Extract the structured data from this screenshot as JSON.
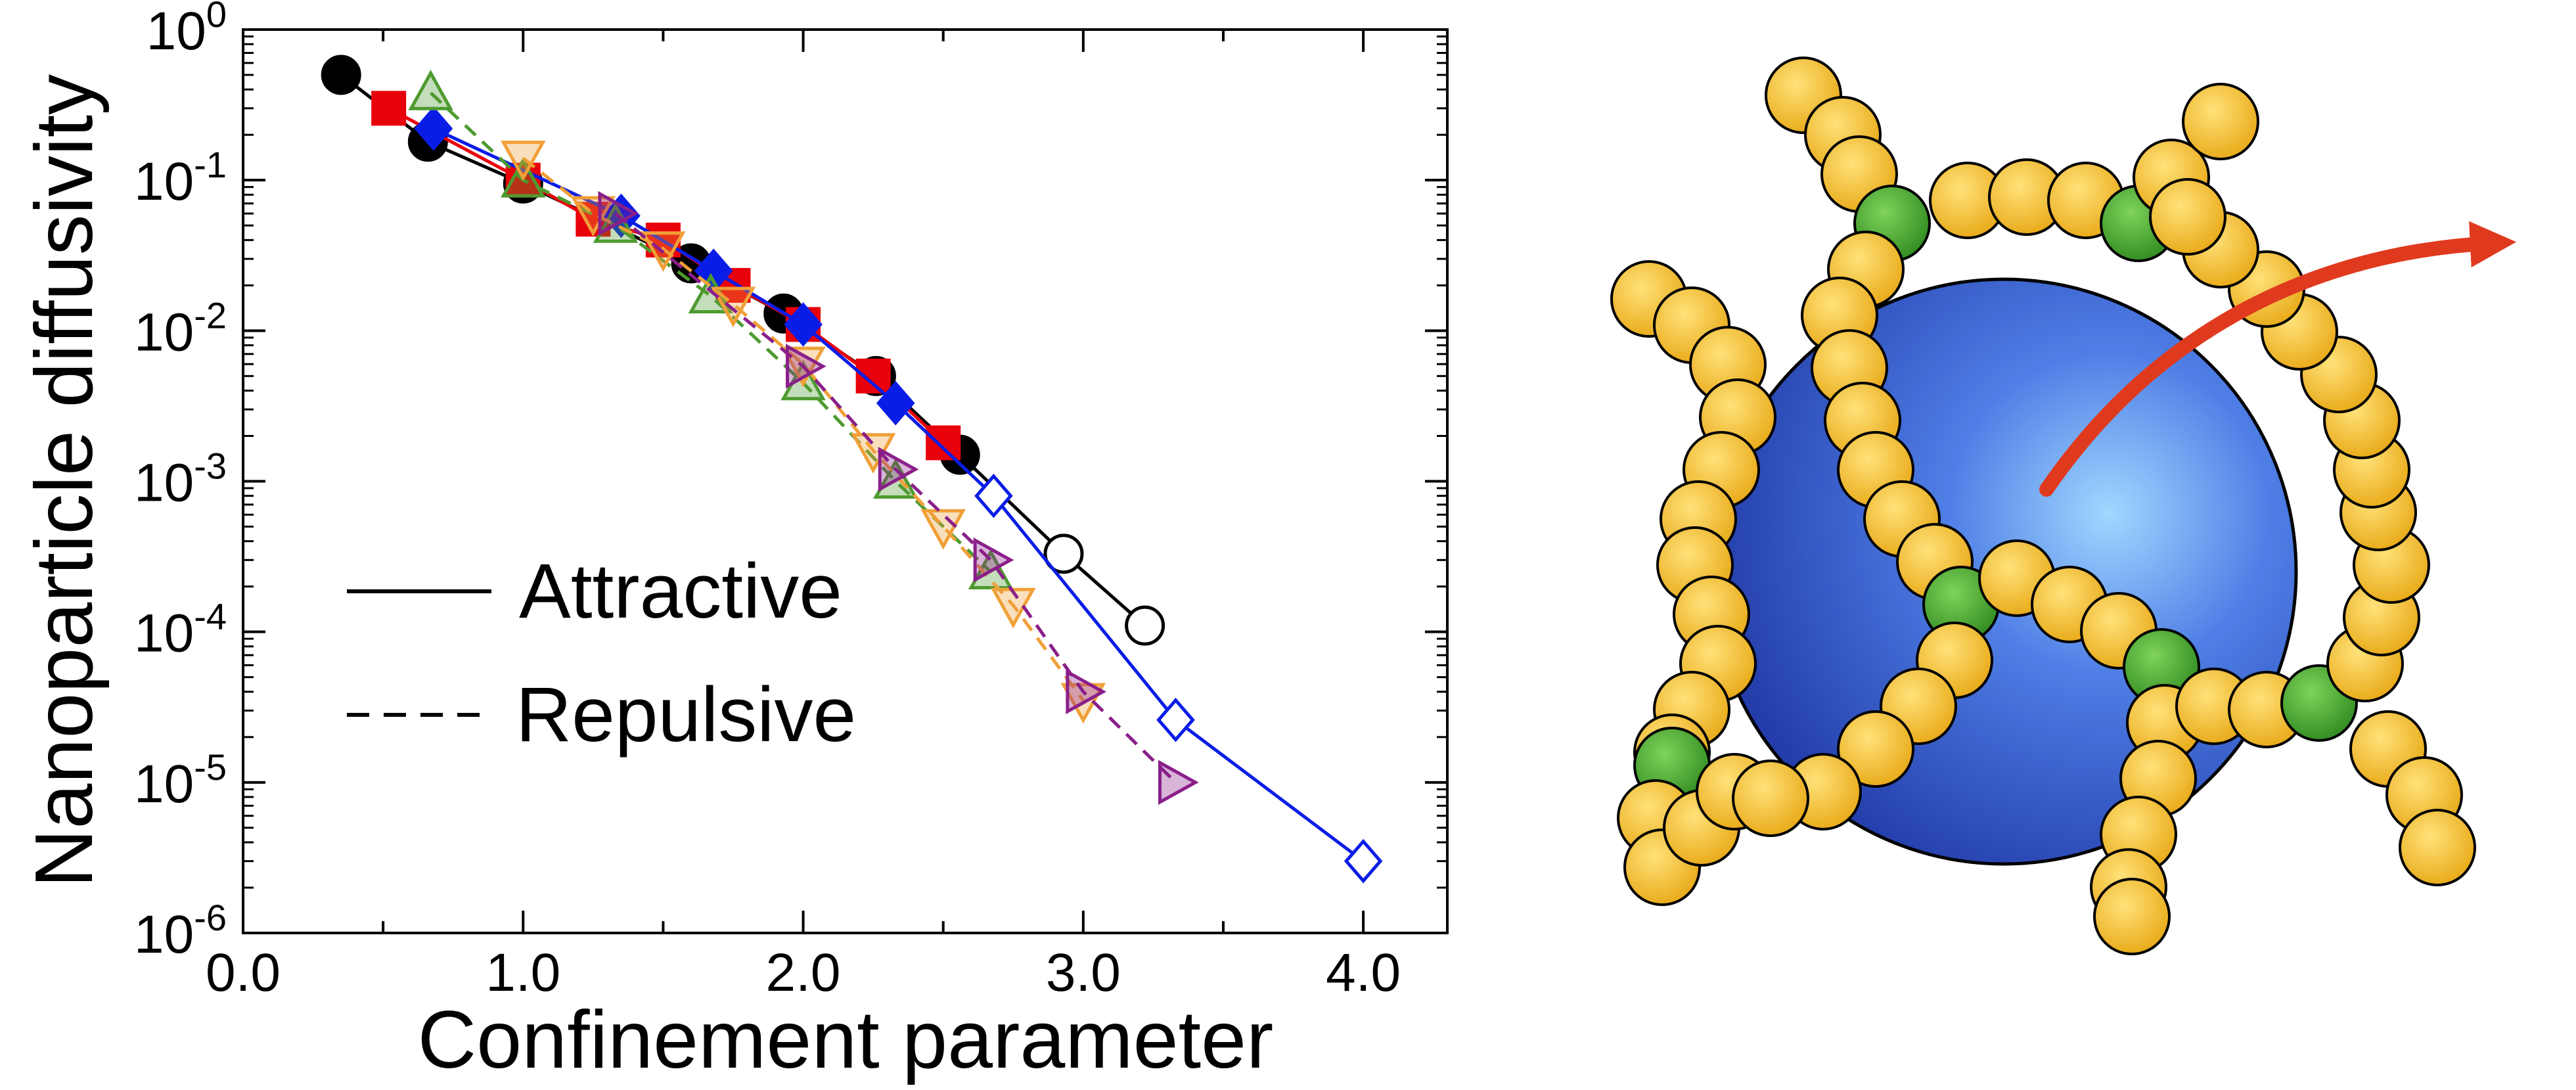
{
  "chart_data": {
    "type": "line",
    "xlabel": "Confinement parameter",
    "ylabel": "Nanoparticle diffusivity",
    "y_scale": "log",
    "xlim": [
      0.0,
      4.3
    ],
    "ylim": [
      1e-06,
      1
    ],
    "x_ticks": [
      "0.0",
      "1.0",
      "2.0",
      "3.0",
      "4.0"
    ],
    "y_ticks": [
      {
        "exp": -6,
        "base": "10",
        "sup": "-6"
      },
      {
        "exp": -5,
        "base": "10",
        "sup": "-5"
      },
      {
        "exp": -4,
        "base": "10",
        "sup": "-4"
      },
      {
        "exp": -3,
        "base": "10",
        "sup": "-3"
      },
      {
        "exp": -2,
        "base": "10",
        "sup": "-2"
      },
      {
        "exp": -1,
        "base": "10",
        "sup": "-1"
      },
      {
        "exp": 0,
        "base": "10",
        "sup": "0"
      }
    ],
    "legend": {
      "placement": "lower-left",
      "entries": [
        {
          "label": "Attractive",
          "style": "solid"
        },
        {
          "label": "Repulsive",
          "style": "dashed"
        }
      ]
    },
    "series": [
      {
        "color": "#000000",
        "marker": "circle",
        "style": "solid",
        "filled_until": 2.56,
        "x": [
          0.35,
          0.66,
          1.0,
          1.6,
          1.93,
          2.26,
          2.56,
          2.93,
          3.22
        ],
        "y": [
          0.5,
          0.18,
          0.095,
          0.028,
          0.013,
          0.005,
          0.0015,
          0.00033,
          0.00011
        ]
      },
      {
        "color": "#e8000b",
        "marker": "square",
        "style": "solid",
        "filled_until": 2.5,
        "x": [
          0.52,
          1.0,
          1.25,
          1.5,
          1.75,
          2.0,
          2.25,
          2.5
        ],
        "y": [
          0.3,
          0.1,
          0.055,
          0.04,
          0.02,
          0.011,
          0.005,
          0.0018
        ]
      },
      {
        "color": "#0a1de6",
        "marker": "diamond",
        "style": "solid",
        "filled_until": 2.33,
        "x": [
          0.68,
          1.35,
          1.68,
          2.0,
          2.33,
          2.68,
          3.33,
          4.0
        ],
        "y": [
          0.22,
          0.058,
          0.025,
          0.011,
          0.0033,
          0.0008,
          2.6e-05,
          3e-06
        ]
      },
      {
        "color": "#4e9a2f",
        "marker": "triangle-up",
        "style": "dashed",
        "filled_until": null,
        "x": [
          0.67,
          1.0,
          1.33,
          1.67,
          2.0,
          2.33,
          2.67
        ],
        "y": [
          0.38,
          0.1,
          0.05,
          0.017,
          0.0045,
          0.001,
          0.00025
        ]
      },
      {
        "color": "#f0a038",
        "marker": "triangle-down",
        "style": "dashed",
        "filled_until": null,
        "x": [
          1.0,
          1.25,
          1.5,
          1.75,
          2.0,
          2.25,
          2.5,
          2.75,
          3.0
        ],
        "y": [
          0.14,
          0.06,
          0.035,
          0.015,
          0.006,
          0.0016,
          0.0005,
          0.00015,
          3.5e-05
        ]
      },
      {
        "color": "#8a1f8a",
        "marker": "triangle-right",
        "style": "dashed",
        "filled_until": null,
        "x": [
          1.33,
          2.0,
          2.33,
          2.67,
          3.0,
          3.33
        ],
        "y": [
          0.06,
          0.0058,
          0.0012,
          0.0003,
          4e-05,
          1e-05
        ]
      }
    ]
  },
  "illustration": {
    "sphere_color": "#1f3fc4",
    "bead_color": "#f2b82a",
    "crosslink_color": "#3f9a2a",
    "arrow_color": "#e03a1e"
  }
}
